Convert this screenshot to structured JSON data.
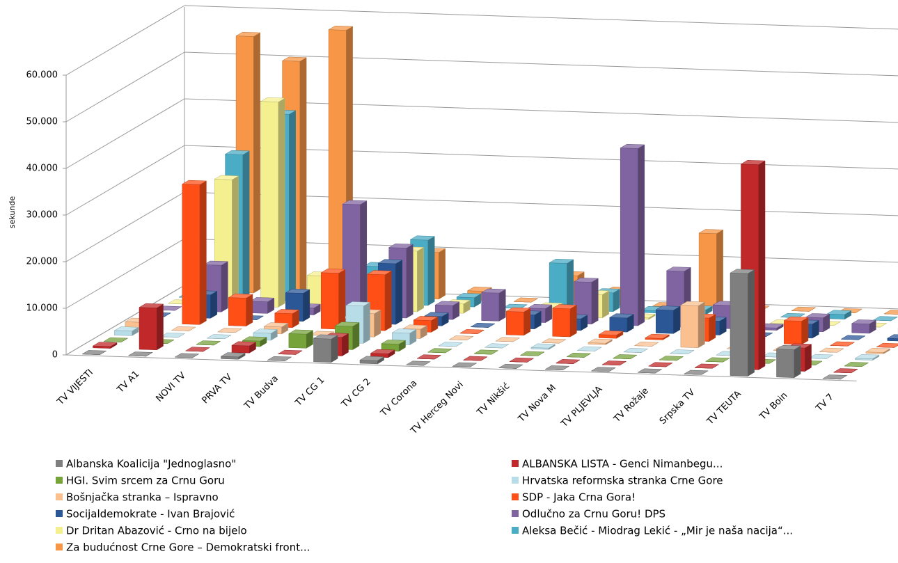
{
  "chart_data": {
    "type": "bar3d",
    "y_label": "sekunde",
    "categories": [
      "TV VIJESTI",
      "TV A1",
      "NOVI TV",
      "PRVA TV",
      "TV Budva",
      "TV CG 1",
      "TV CG 2",
      "TV Corona",
      "TV Herceg Novi",
      "TV Nikšić",
      "TV Nova M",
      "TV PLJEVLJA",
      "TV Rožaje",
      "Srpska TV",
      "TV TEUTA",
      "TV Boin",
      "TV 7"
    ],
    "ylim": [
      0,
      60000
    ],
    "yticks": [
      0,
      {
        "value": 10000,
        "label": "10.000"
      },
      {
        "value": 20000,
        "label": "20.000"
      },
      {
        "value": 30000,
        "label": "30.000"
      },
      {
        "value": 40000,
        "label": "40.000"
      },
      {
        "value": 50000,
        "label": "50.000"
      },
      {
        "value": 60000,
        "label": "60.000"
      }
    ],
    "grid": true,
    "series": [
      {
        "name": "Albanska Koalicija \"Jednoglasno\"",
        "color": "#7f7f7f",
        "values": [
          0,
          0,
          0,
          500,
          0,
          5000,
          700,
          0,
          0,
          0,
          0,
          0,
          0,
          0,
          22000,
          6000,
          0
        ]
      },
      {
        "name": "ALBANSKA LISTA - Genci Nimanbegu...",
        "color": "#c0282a",
        "values": [
          400,
          9000,
          0,
          1500,
          0,
          4000,
          800,
          0,
          0,
          0,
          0,
          0,
          0,
          0,
          44000,
          5000,
          0
        ]
      },
      {
        "name": "HGI. Svim srcem za Crnu Goru",
        "color": "#77a33b",
        "values": [
          0,
          0,
          0,
          1200,
          3000,
          5000,
          1500,
          0,
          0,
          0,
          0,
          0,
          0,
          0,
          0,
          0,
          0
        ]
      },
      {
        "name": "Hrvatska reformska stranka Crne Gore",
        "color": "#b7dde8",
        "values": [
          1000,
          0,
          0,
          1500,
          0,
          8000,
          2500,
          0,
          0,
          300,
          0,
          0,
          0,
          0,
          0,
          0,
          300
        ]
      },
      {
        "name": "Bošnjačka stranka – Ispravno",
        "color": "#fac090",
        "values": [
          1500,
          0,
          0,
          1500,
          0,
          5000,
          2000,
          0,
          0,
          0,
          300,
          0,
          9000,
          0,
          0,
          0,
          300
        ]
      },
      {
        "name": "SDP - Jaka Crna Gora!",
        "color": "#ff4f17",
        "values": [
          0,
          30000,
          6000,
          3000,
          12000,
          12000,
          2500,
          0,
          5000,
          6000,
          700,
          300,
          5000,
          0,
          5000,
          0,
          0
        ]
      },
      {
        "name": "Socijaldemokrate - Ivan Brajović",
        "color": "#2b5797",
        "values": [
          0,
          5000,
          0,
          6000,
          0,
          13000,
          2000,
          0,
          3000,
          2500,
          3000,
          5000,
          3000,
          0,
          3000,
          0,
          500
        ]
      },
      {
        "name": "Odlučno za Crnu Goru! DPS",
        "color": "#8064a2",
        "values": [
          0,
          10000,
          2500,
          1500,
          24000,
          15000,
          3000,
          6000,
          3000,
          9000,
          38000,
          12000,
          5000,
          500,
          3000,
          2000,
          1500
        ]
      },
      {
        "name": "Dr Dritan Abazović - Crno na bijelo",
        "color": "#f5f08f",
        "values": [
          0,
          27000,
          44000,
          7000,
          0,
          13000,
          2000,
          0,
          2000,
          5000,
          300,
          2000,
          2000,
          0,
          0,
          0,
          0
        ]
      },
      {
        "name": "Aleksa Bečić - Miodrag Lekić - „Mir je naša nacija“...",
        "color": "#4bacc6",
        "values": [
          0,
          31000,
          40000,
          1000,
          8000,
          14000,
          2000,
          0,
          10000,
          4000,
          500,
          1000,
          1000,
          0,
          1000,
          0,
          0
        ]
      },
      {
        "name": "Za budućnost Crne Gore – Demokratski front...",
        "color": "#f79646",
        "values": [
          0,
          55000,
          50000,
          57000,
          5000,
          10000,
          2000,
          0,
          6000,
          3000,
          0,
          16000,
          0,
          0,
          0,
          0,
          0
        ]
      }
    ]
  }
}
